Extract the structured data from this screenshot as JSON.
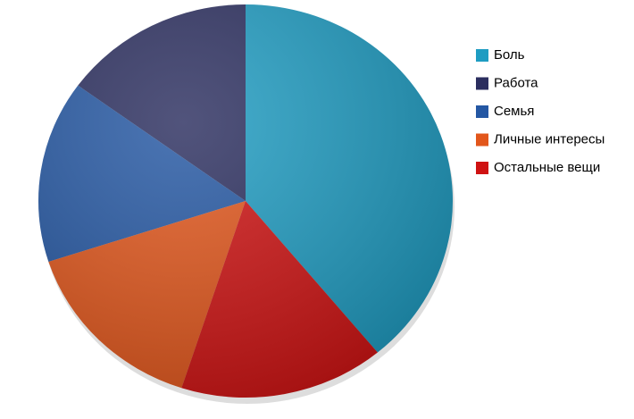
{
  "chart_data": {
    "type": "pie",
    "categories": [
      "Боль",
      "Работа",
      "Семья",
      "Личные интересы",
      "Остальные вещи"
    ],
    "values": [
      39,
      15,
      15,
      15,
      16
    ],
    "colors": [
      "#1e9cc2",
      "#2b2e5f",
      "#2457a3",
      "#e2561b",
      "#cf1212"
    ],
    "legend": "right"
  }
}
